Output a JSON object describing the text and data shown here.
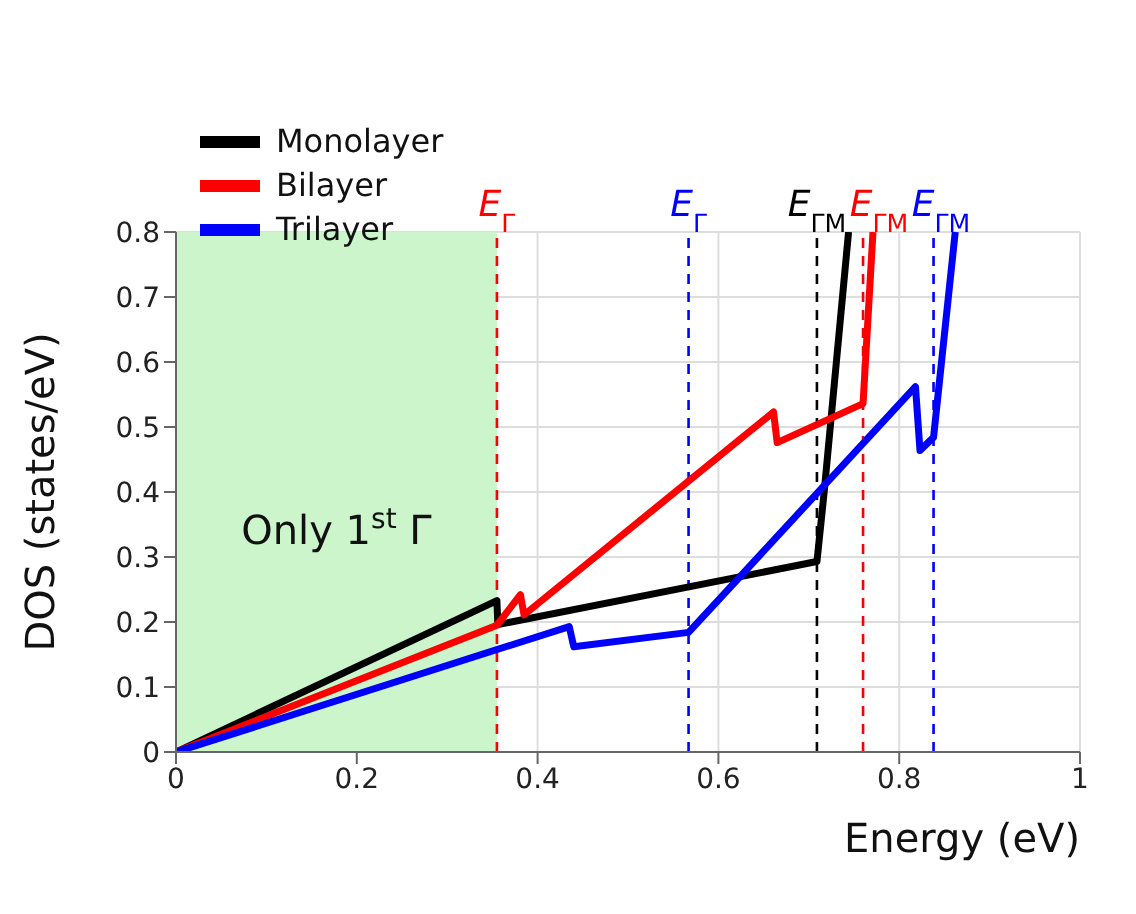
{
  "chart_data": {
    "type": "line",
    "xlabel": "Energy (eV)",
    "ylabel": "DOS (states/eV)",
    "xlim": [
      0,
      1
    ],
    "xticks": [
      0,
      0.2,
      0.4,
      0.6,
      0.8,
      1
    ],
    "ylim": [
      0,
      0.8
    ],
    "yticks": [
      0,
      0.1,
      0.2,
      0.3,
      0.4,
      0.5,
      0.6,
      0.7,
      0.8
    ],
    "grid": true,
    "legend": "top left",
    "series": [
      {
        "name": "Monolayer",
        "color": "#000000",
        "x": [
          0,
          0.355,
          0.356,
          0.709,
          0.717,
          0.744
        ],
        "values": [
          0,
          0.233,
          0.196,
          0.293,
          0.4,
          0.8
        ]
      },
      {
        "name": "Bilayer",
        "color": "#ff0000",
        "x": [
          0,
          0.355,
          0.381,
          0.385,
          0.661,
          0.665,
          0.76,
          0.771
        ],
        "values": [
          0,
          0.195,
          0.242,
          0.211,
          0.523,
          0.476,
          0.536,
          0.8
        ]
      },
      {
        "name": "Trilayer",
        "color": "#0000ff",
        "x": [
          0,
          0.435,
          0.44,
          0.567,
          0.818,
          0.823,
          0.838,
          0.862
        ],
        "values": [
          0,
          0.193,
          0.162,
          0.184,
          0.562,
          0.464,
          0.484,
          0.8
        ]
      }
    ],
    "bands": [
      {
        "axis": "x",
        "from": 0,
        "to": 0.355,
        "label": "Only 1$^{st}$ Γ",
        "color": "#ccf5cc"
      }
    ],
    "ref_lines": [
      {
        "axis": "x",
        "value": 0.355,
        "label": "E$_{Γ}$",
        "color": "#ff0000",
        "line_style": "dashed"
      },
      {
        "axis": "x",
        "value": 0.567,
        "label": "E$_{Γ}$",
        "color": "#0000ff",
        "line_style": "dashed"
      },
      {
        "axis": "x",
        "value": 0.709,
        "label": "E$_{ΓM}$",
        "color": "#000000",
        "line_style": "dashed"
      },
      {
        "axis": "x",
        "value": 0.76,
        "label": "E$_{ΓM}$",
        "color": "#ff0000",
        "line_style": "dashed"
      },
      {
        "axis": "x",
        "value": 0.838,
        "label": "E$_{ΓM}$",
        "color": "#0000ff",
        "line_style": "dashed"
      }
    ]
  }
}
